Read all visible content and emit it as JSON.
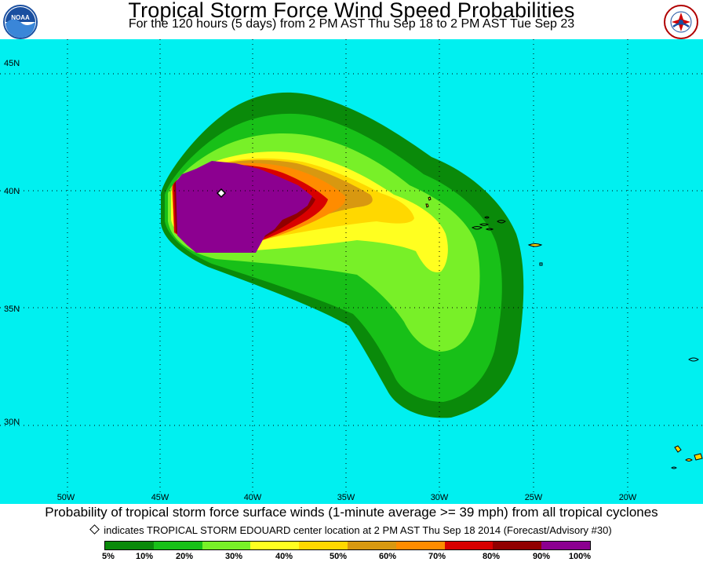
{
  "header": {
    "title": "Tropical Storm Force Wind Speed Probabilities",
    "subtitle": "For the 120 hours (5 days) from 2 PM AST Thu Sep 18 to 2 PM AST Tue Sep 23",
    "logo_left": "NOAA",
    "logo_right": "NATIONAL WEATHER SERVICE"
  },
  "map": {
    "ocean_color": "#00f0f0",
    "lat_labels": [
      "45N",
      "40N",
      "35N",
      "30N"
    ],
    "lon_labels": [
      "50W",
      "45W",
      "40W",
      "35W",
      "30W",
      "25W",
      "20W"
    ],
    "storm_marker": "diamond-icon"
  },
  "footer": {
    "caption": "Probability of tropical storm force surface winds (1-minute average >= 39 mph) from all tropical cyclones",
    "indicator_text": "indicates TROPICAL STORM EDOUARD center location at 2 PM AST Thu Sep 18 2014 (Forecast/Advisory #30)"
  },
  "legend": {
    "colors": [
      "#0a8a0a",
      "#18c018",
      "#78f028",
      "#ffff20",
      "#ffd800",
      "#d89810",
      "#ff8c00",
      "#d80000",
      "#900000",
      "#8c0090"
    ],
    "labels": [
      "5%",
      "10%",
      "20%",
      "30%",
      "40%",
      "50%",
      "60%",
      "70%",
      "80%",
      "90%",
      "100%"
    ]
  }
}
